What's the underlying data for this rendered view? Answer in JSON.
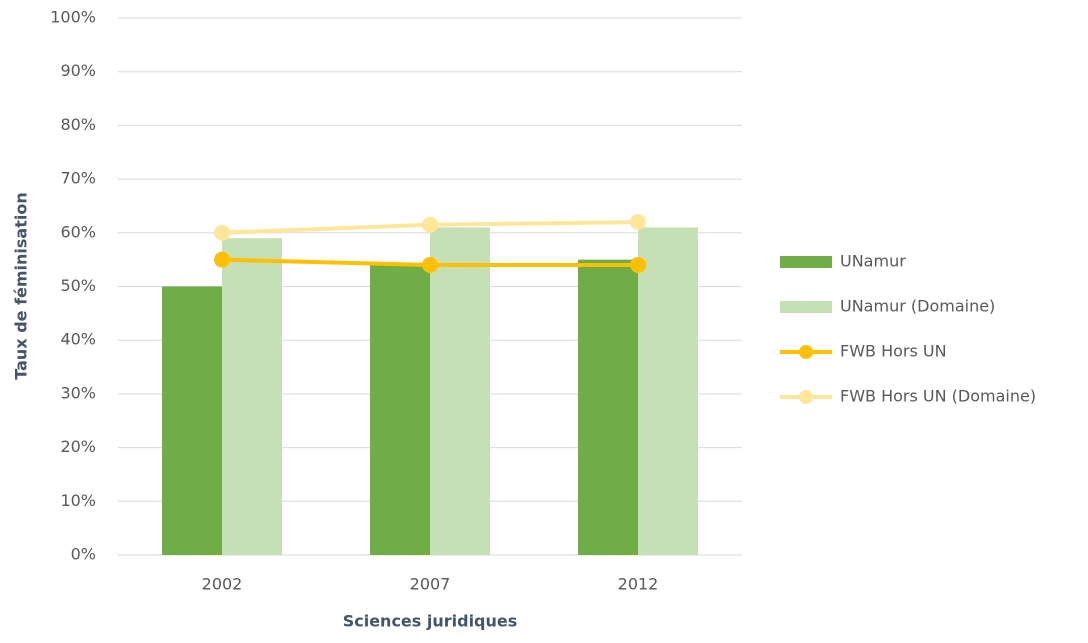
{
  "chart_data": {
    "type": "combo",
    "x_label": "Sciences juridiques",
    "y_label": "Taux de féminisation",
    "categories": [
      "2002",
      "2007",
      "2012"
    ],
    "series": [
      {
        "name": "UNamur",
        "type": "bar",
        "color": "#70ad47",
        "values": [
          50,
          54,
          55
        ]
      },
      {
        "name": "UNamur (Domaine)",
        "type": "bar",
        "color": "#c5e0b4",
        "values": [
          59,
          61,
          61
        ]
      },
      {
        "name": "FWB Hors UN",
        "type": "line",
        "color": "#ffc000",
        "values": [
          55,
          54,
          54
        ]
      },
      {
        "name": "FWB Hors UN (Domaine)",
        "type": "line",
        "color": "#ffe699",
        "values": [
          60,
          61.5,
          62
        ]
      }
    ],
    "ylim": [
      0,
      100
    ],
    "yticks": [
      {
        "value": 0,
        "label": "0%"
      },
      {
        "value": 10,
        "label": "10%"
      },
      {
        "value": 20,
        "label": "20%"
      },
      {
        "value": 30,
        "label": "30%"
      },
      {
        "value": 40,
        "label": "40%"
      },
      {
        "value": 50,
        "label": "50%"
      },
      {
        "value": 60,
        "label": "60%"
      },
      {
        "value": 70,
        "label": "70%"
      },
      {
        "value": 80,
        "label": "80%"
      },
      {
        "value": 90,
        "label": "90%"
      },
      {
        "value": 100,
        "label": "100%"
      }
    ],
    "grid": true,
    "legend": "right"
  }
}
